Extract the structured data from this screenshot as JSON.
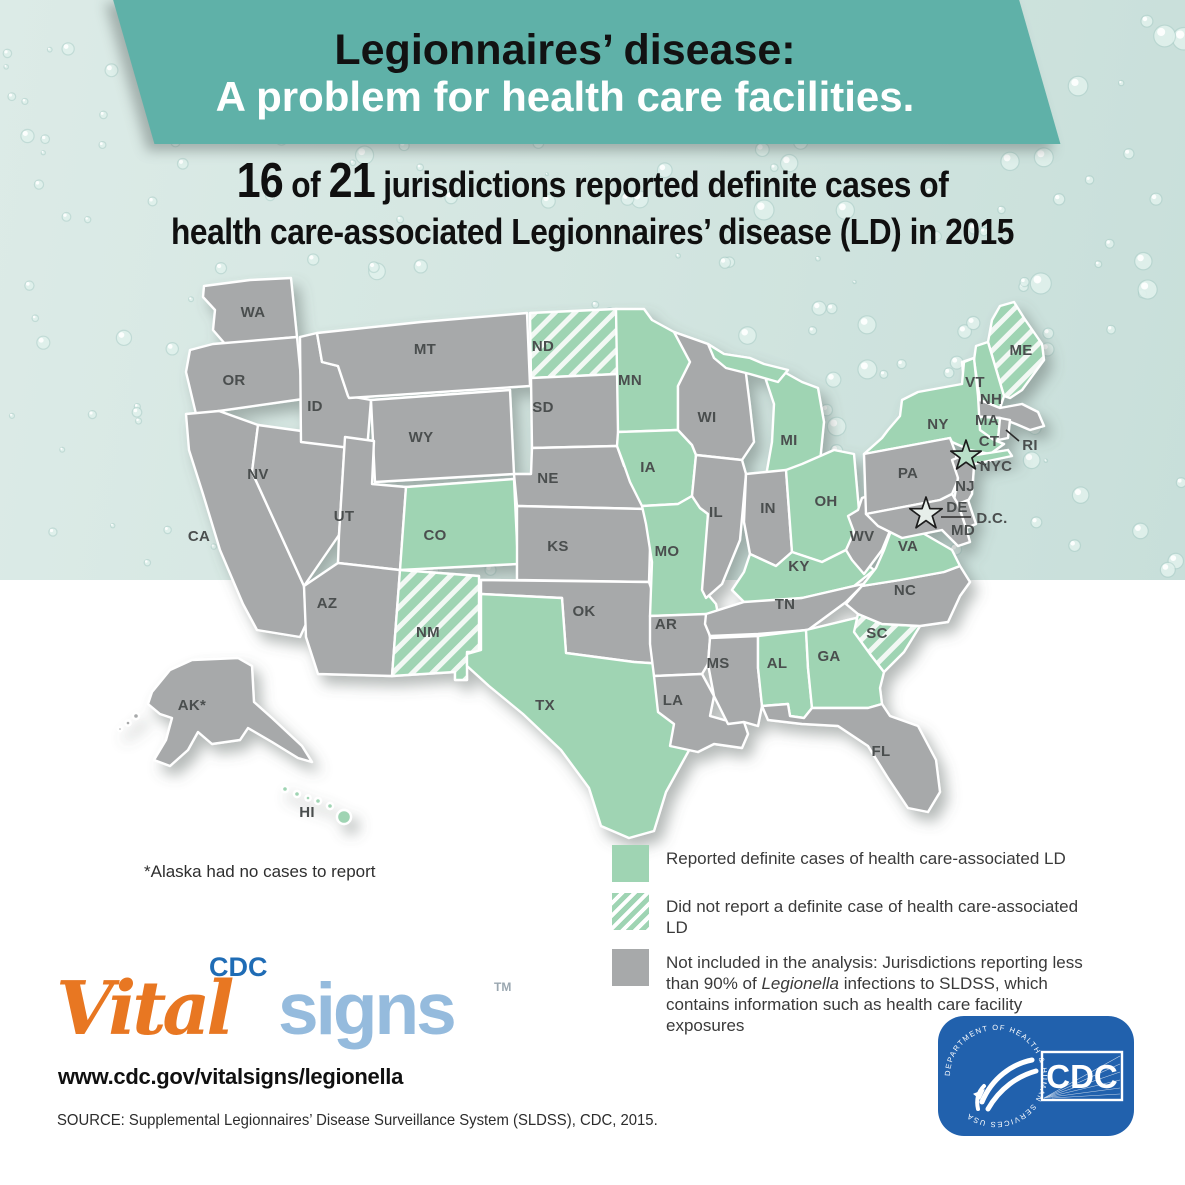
{
  "header": {
    "title_line1": "Legionnaires’ disease:",
    "title_line2": "A problem for health care facilities."
  },
  "headline": {
    "stat": "16 of 21",
    "num1": "16",
    "of": " of ",
    "num2": "21",
    "line1_rest": " jurisdictions reported definite cases of",
    "line2": "health care-associated Legionnaires’ disease (LD) in 2015"
  },
  "map": {
    "footnote": "*Alaska had no cases to report",
    "states": [
      {
        "id": "WA",
        "label": "WA",
        "status": "not_included"
      },
      {
        "id": "OR",
        "label": "OR",
        "status": "not_included"
      },
      {
        "id": "CA",
        "label": "CA",
        "status": "not_included"
      },
      {
        "id": "NV",
        "label": "NV",
        "status": "not_included"
      },
      {
        "id": "ID",
        "label": "ID",
        "status": "not_included"
      },
      {
        "id": "MT",
        "label": "MT",
        "status": "not_included"
      },
      {
        "id": "WY",
        "label": "WY",
        "status": "not_included"
      },
      {
        "id": "UT",
        "label": "UT",
        "status": "not_included"
      },
      {
        "id": "AZ",
        "label": "AZ",
        "status": "not_included"
      },
      {
        "id": "CO",
        "label": "CO",
        "status": "reported"
      },
      {
        "id": "NM",
        "label": "NM",
        "status": "not_reported"
      },
      {
        "id": "ND",
        "label": "ND",
        "status": "not_reported"
      },
      {
        "id": "SD",
        "label": "SD",
        "status": "not_included"
      },
      {
        "id": "NE",
        "label": "NE",
        "status": "not_included"
      },
      {
        "id": "KS",
        "label": "KS",
        "status": "not_included"
      },
      {
        "id": "OK",
        "label": "OK",
        "status": "not_included"
      },
      {
        "id": "TX",
        "label": "TX",
        "status": "reported"
      },
      {
        "id": "MN",
        "label": "MN",
        "status": "reported"
      },
      {
        "id": "IA",
        "label": "IA",
        "status": "reported"
      },
      {
        "id": "MO",
        "label": "MO",
        "status": "reported"
      },
      {
        "id": "AR",
        "label": "AR",
        "status": "not_included"
      },
      {
        "id": "LA",
        "label": "LA",
        "status": "not_included"
      },
      {
        "id": "WI",
        "label": "WI",
        "status": "not_included"
      },
      {
        "id": "IL",
        "label": "IL",
        "status": "not_included"
      },
      {
        "id": "MI",
        "label": "MI",
        "status": "reported"
      },
      {
        "id": "IN",
        "label": "IN",
        "status": "not_included"
      },
      {
        "id": "OH",
        "label": "OH",
        "status": "reported"
      },
      {
        "id": "KY",
        "label": "KY",
        "status": "reported"
      },
      {
        "id": "TN",
        "label": "TN",
        "status": "not_included"
      },
      {
        "id": "MS",
        "label": "MS",
        "status": "not_included"
      },
      {
        "id": "AL",
        "label": "AL",
        "status": "reported"
      },
      {
        "id": "GA",
        "label": "GA",
        "status": "reported"
      },
      {
        "id": "SC",
        "label": "SC",
        "status": "not_reported"
      },
      {
        "id": "NC",
        "label": "NC",
        "status": "not_included"
      },
      {
        "id": "VA",
        "label": "VA",
        "status": "reported"
      },
      {
        "id": "WV",
        "label": "WV",
        "status": "not_included"
      },
      {
        "id": "FL",
        "label": "FL",
        "status": "not_included"
      },
      {
        "id": "ME",
        "label": "ME",
        "status": "not_reported"
      },
      {
        "id": "VT",
        "label": "VT",
        "status": "not_included"
      },
      {
        "id": "NH",
        "label": "NH",
        "status": "reported"
      },
      {
        "id": "MA",
        "label": "MA",
        "status": "not_included"
      },
      {
        "id": "CT",
        "label": "CT",
        "status": "reported"
      },
      {
        "id": "RI",
        "label": "RI",
        "status": "not_included"
      },
      {
        "id": "NY",
        "label": "NY",
        "status": "reported"
      },
      {
        "id": "PA",
        "label": "PA",
        "status": "not_included"
      },
      {
        "id": "NJ",
        "label": "NJ",
        "status": "not_included"
      },
      {
        "id": "DE",
        "label": "DE",
        "status": "not_included"
      },
      {
        "id": "MD",
        "label": "MD",
        "status": "not_included"
      },
      {
        "id": "LI",
        "label": "",
        "status": "reported"
      },
      {
        "id": "AK",
        "label": "AK*",
        "status": "not_included"
      },
      {
        "id": "HI",
        "label": "HI",
        "status": "reported"
      },
      {
        "id": "NYC",
        "label": "NYC",
        "status": "reported"
      },
      {
        "id": "DC",
        "label": "D.C.",
        "status": "not_included"
      }
    ]
  },
  "legend": {
    "items": [
      {
        "swatch": "reported",
        "text_before": "Reported definite cases of health care-associated LD",
        "text_italic": "",
        "text_after": ""
      },
      {
        "swatch": "not_reported",
        "text_before": "Did not report a definite case of health care-associated LD",
        "text_italic": "",
        "text_after": ""
      },
      {
        "swatch": "not_included",
        "text_before": "Not included in the analysis: Jurisdictions reporting less than 90% of ",
        "text_italic": "Legionella",
        "text_after": " infections to SLDSS, which contains information such as health care facility exposures"
      }
    ]
  },
  "footer": {
    "logo_vital": "Vital",
    "logo_cdc_small": "CDC",
    "logo_signs": "signs",
    "logo_tm": "TM",
    "url": "www.cdc.gov/vitalsigns/legionella",
    "source": "SOURCE: Supplemental Legionnaires’ Disease Surveillance System (SLDSS), CDC, 2015."
  },
  "cdc_logo": {
    "text": "CDC",
    "hhs_circular_text": "DEPARTMENT OF HEALTH & HUMAN SERVICES USA"
  },
  "colors": {
    "banner_teal": "#5fb1a8",
    "reported_green": "#9fd4b3",
    "not_included_gray": "#a7a9aa",
    "background_top": "#d2e5e0",
    "background_bottom": "#ffffff",
    "cdc_blue": "#2161ad",
    "cdc_link_blue": "#1f6cb5",
    "vital_orange": "#e87722",
    "signs_blue": "#95bbdd"
  }
}
